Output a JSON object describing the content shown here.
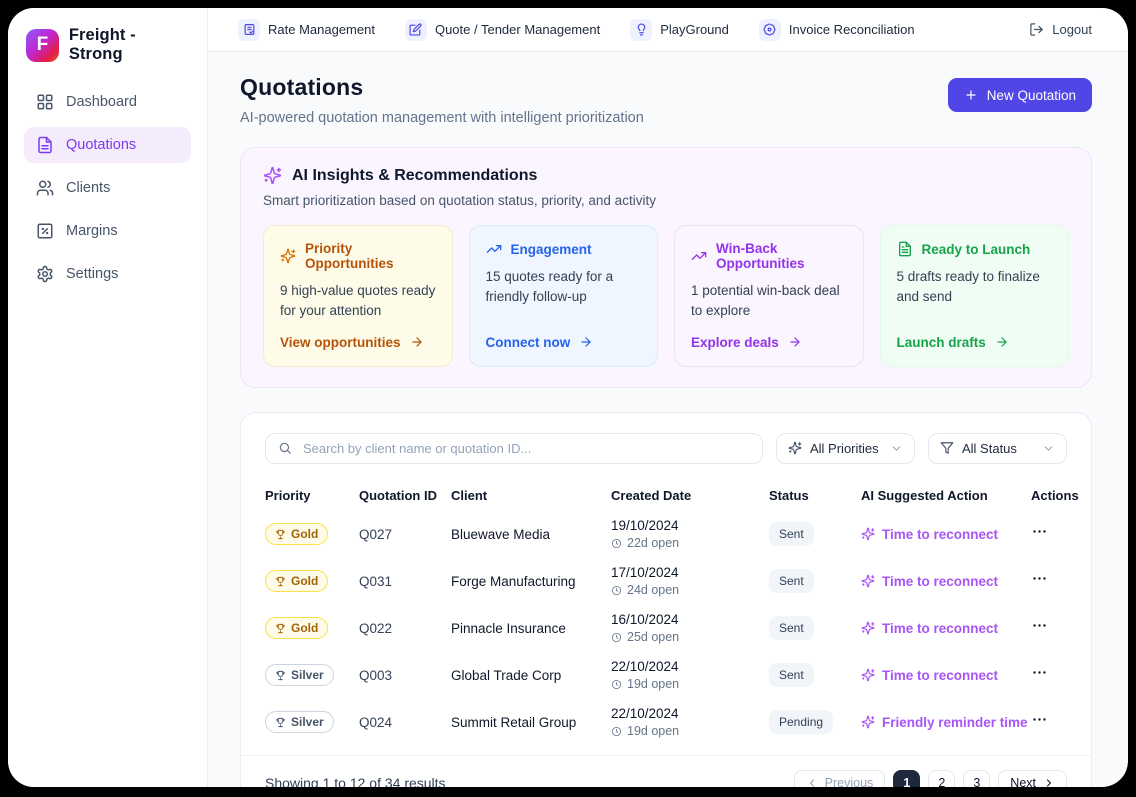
{
  "app": {
    "name": "Freight -Strong",
    "logo_letter": "F"
  },
  "sidebar": {
    "items": [
      {
        "label": "Dashboard",
        "icon": "dashboard-grid",
        "active": false
      },
      {
        "label": "Quotations",
        "icon": "document",
        "active": true
      },
      {
        "label": "Clients",
        "icon": "users",
        "active": false
      },
      {
        "label": "Margins",
        "icon": "percent-square",
        "active": false
      },
      {
        "label": "Settings",
        "icon": "gear",
        "active": false
      }
    ]
  },
  "topnav": {
    "items": [
      {
        "label": "Rate Management",
        "icon": "rate-doc"
      },
      {
        "label": "Quote / Tender Management",
        "icon": "quote-edit"
      },
      {
        "label": "PlayGround",
        "icon": "lightbulb"
      },
      {
        "label": "Invoice Reconciliation",
        "icon": "badge-cog"
      }
    ],
    "logout_label": "Logout"
  },
  "header": {
    "title": "Quotations",
    "subtitle": "AI-powered quotation management with intelligent prioritization",
    "new_button_label": "New Quotation"
  },
  "insights": {
    "title": "AI Insights & Recommendations",
    "subtitle": "Smart prioritization based on quotation status, priority, and activity",
    "cards": [
      {
        "title": "Priority Opportunities",
        "body": "9 high-value quotes ready for your attention",
        "link": "View opportunities",
        "icon": "sparkles",
        "theme": "amber"
      },
      {
        "title": "Engagement",
        "body": "15 quotes ready for a friendly follow-up",
        "link": "Connect now",
        "icon": "trending-up",
        "theme": "blue"
      },
      {
        "title": "Win-Back Opportunities",
        "body": "1 potential win-back deal to explore",
        "link": "Explore deals",
        "icon": "trending-up",
        "theme": "purple"
      },
      {
        "title": "Ready to Launch",
        "body": "5 drafts ready to finalize and send",
        "link": "Launch drafts",
        "icon": "file-text",
        "theme": "green"
      }
    ]
  },
  "filters": {
    "search_placeholder": "Search by client name or quotation ID...",
    "priority_filter_value": "All Priorities",
    "status_filter_value": "All Status"
  },
  "table": {
    "columns": [
      "Priority",
      "Quotation ID",
      "Client",
      "Created Date",
      "Status",
      "AI Suggested Action",
      "Actions"
    ],
    "rows": [
      {
        "priority": "Gold",
        "quotation_id": "Q027",
        "client": "Bluewave Media",
        "created_date": "19/10/2024",
        "open_duration": "22d open",
        "status": "Sent",
        "ai_action": "Time to reconnect"
      },
      {
        "priority": "Gold",
        "quotation_id": "Q031",
        "client": "Forge Manufacturing",
        "created_date": "17/10/2024",
        "open_duration": "24d open",
        "status": "Sent",
        "ai_action": "Time to reconnect"
      },
      {
        "priority": "Gold",
        "quotation_id": "Q022",
        "client": "Pinnacle Insurance",
        "created_date": "16/10/2024",
        "open_duration": "25d open",
        "status": "Sent",
        "ai_action": "Time to reconnect"
      },
      {
        "priority": "Silver",
        "quotation_id": "Q003",
        "client": "Global Trade Corp",
        "created_date": "22/10/2024",
        "open_duration": "19d open",
        "status": "Sent",
        "ai_action": "Time to reconnect"
      },
      {
        "priority": "Silver",
        "quotation_id": "Q024",
        "client": "Summit Retail Group",
        "created_date": "22/10/2024",
        "open_duration": "19d open",
        "status": "Pending",
        "ai_action": "Friendly reminder time"
      }
    ]
  },
  "pagination": {
    "summary": "Showing 1 to 12 of 34 results",
    "previous_label": "Previous",
    "pages": [
      "1",
      "2",
      "3"
    ],
    "active_page": "1",
    "next_label": "Next"
  },
  "colors": {
    "accent": "#4f46e5",
    "ai_purple": "#a855f7",
    "amber": "#b45309",
    "blue": "#2563eb",
    "purple": "#9333ea",
    "green": "#16a34a",
    "gold_badge_border": "#fde047",
    "silver_badge_border": "#cbd5e1"
  }
}
